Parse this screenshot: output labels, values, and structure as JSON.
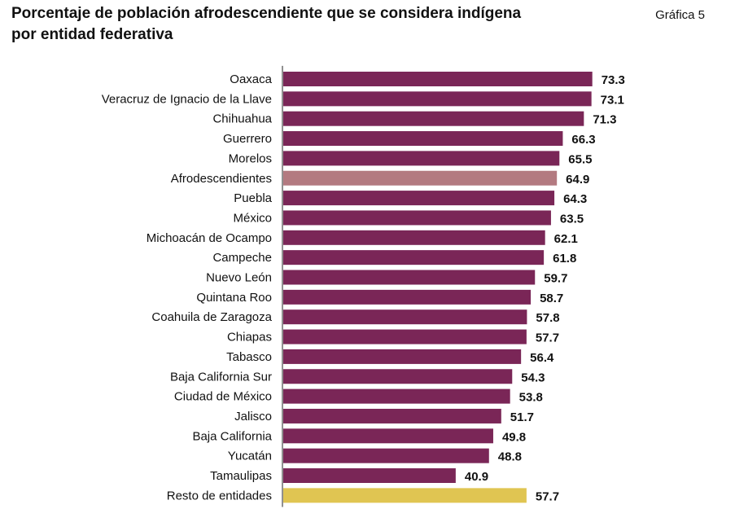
{
  "title_line1": "Porcentaje de población afrodescendiente que se considera indígena",
  "title_line2": "por entidad federativa",
  "figure_ref": "Gráfica 5",
  "colors": {
    "default": "#7a2657",
    "afro": "#b37a80",
    "resto": "#e0c552"
  },
  "chart_data": {
    "type": "bar",
    "orientation": "horizontal",
    "title": "Porcentaje de población afrodescendiente que se considera indígena por entidad federativa",
    "xlim": [
      0,
      76
    ],
    "categories": [
      "Oaxaca",
      "Veracruz de Ignacio de la Llave",
      "Chihuahua",
      "Guerrero",
      "Morelos",
      "Afrodescendientes",
      "Puebla",
      "México",
      "Michoacán de Ocampo",
      "Campeche",
      "Nuevo León",
      "Quintana Roo",
      "Coahuila de Zaragoza",
      "Chiapas",
      "Tabasco",
      "Baja California Sur",
      "Ciudad de México",
      "Jalisco",
      "Baja California",
      "Yucatán",
      "Tamaulipas",
      "Resto de entidades"
    ],
    "values": [
      73.3,
      73.1,
      71.3,
      66.3,
      65.5,
      64.9,
      64.3,
      63.5,
      62.1,
      61.8,
      59.7,
      58.7,
      57.8,
      57.7,
      56.4,
      54.3,
      53.8,
      51.7,
      49.8,
      48.8,
      40.9,
      57.7
    ],
    "labels": [
      "73.3",
      "73.1",
      "71.3",
      "66.3",
      "65.5",
      "64.9",
      "64.3",
      "63.5",
      "62.1",
      "61.8",
      "59.7",
      "58.7",
      "57.8",
      "57.7",
      "56.4",
      "54.3",
      "53.8",
      "51.7",
      "49.8",
      "48.8",
      "40.9",
      "57.7"
    ],
    "highlight": {
      "Afrodescendientes": "afro",
      "Resto de entidades": "resto"
    },
    "grid": false
  }
}
